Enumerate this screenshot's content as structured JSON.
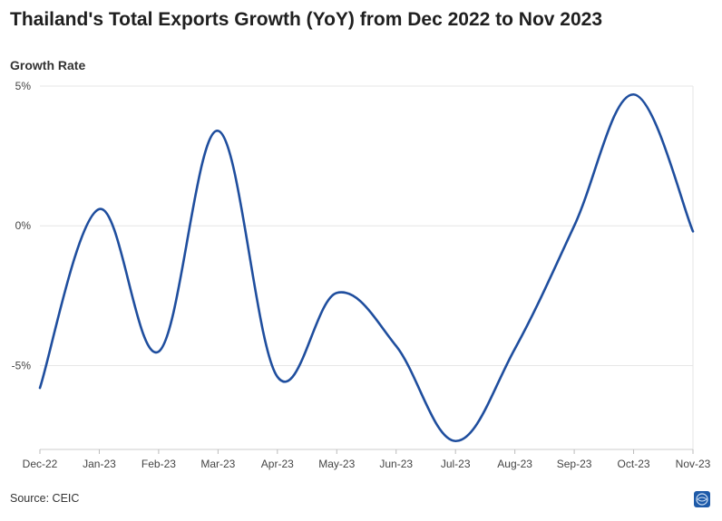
{
  "chart_data": {
    "type": "line",
    "title": "Thailand's Total Exports Growth (YoY) from Dec 2022 to Nov 2023",
    "ylabel": "Growth Rate",
    "xlabel": "",
    "categories": [
      "Dec-22",
      "Jan-23",
      "Feb-23",
      "Mar-23",
      "Apr-23",
      "May-23",
      "Jun-23",
      "Jul-23",
      "Aug-23",
      "Sep-23",
      "Oct-23",
      "Nov-23"
    ],
    "series": [
      {
        "values": [
          -5.8,
          0.6,
          -4.5,
          3.4,
          -5.4,
          -2.4,
          -4.3,
          -7.7,
          -4.4,
          0.0,
          4.7,
          -0.2
        ]
      }
    ],
    "ylim": [
      -8,
      5
    ],
    "yticks": [
      5,
      0,
      -5
    ],
    "ytick_labels": [
      "5%",
      "0%",
      "-5%"
    ],
    "grid": true,
    "line_color": "#1f4e9e"
  },
  "source": "Source: CEIC",
  "logo_icon": "ceic-logo-icon"
}
